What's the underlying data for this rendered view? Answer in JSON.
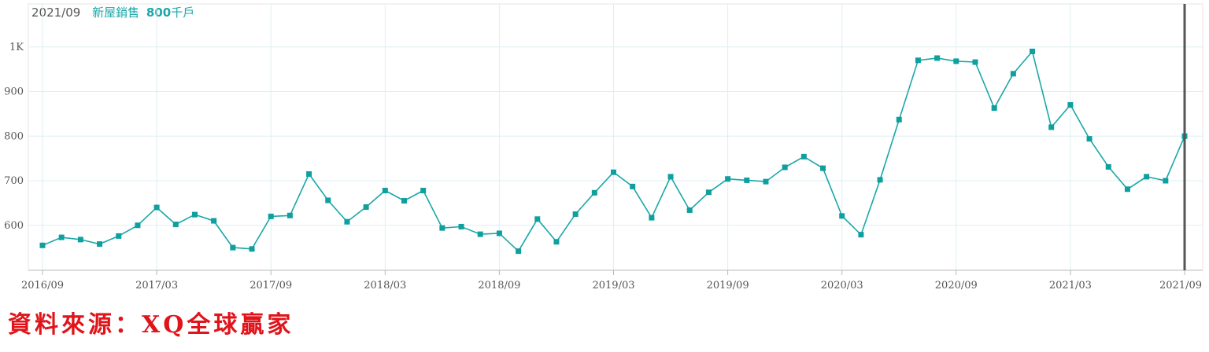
{
  "header": {
    "date": "2021/09",
    "series_name": "新屋銷售",
    "value": "800",
    "unit": "千戶"
  },
  "source_note": "資料來源：XQ全球贏家",
  "colors": {
    "line": "#1aa7a7",
    "marker": "#0f9f9f",
    "grid": "#dfeef2",
    "axis": "#b8b8b8",
    "tick_label": "#555555",
    "cursor": "#555555",
    "source": "#e0141b"
  },
  "chart_data": {
    "type": "line",
    "title": "",
    "xlabel": "",
    "ylabel": "",
    "ylim": [
      500,
      1100
    ],
    "y_ticks": [
      {
        "value": 600,
        "label": "600"
      },
      {
        "value": 700,
        "label": "700"
      },
      {
        "value": 800,
        "label": "800"
      },
      {
        "value": 900,
        "label": "900"
      },
      {
        "value": 1000,
        "label": "1K"
      }
    ],
    "x_tick_labels": [
      "2016/09",
      "2017/03",
      "2017/09",
      "2018/03",
      "2018/09",
      "2019/03",
      "2019/09",
      "2020/03",
      "2020/09",
      "2021/03",
      "2021/09"
    ],
    "grid": true,
    "legend": "none",
    "series": [
      {
        "name": "新屋銷售",
        "x": [
          "2016/09",
          "2016/10",
          "2016/11",
          "2016/12",
          "2017/01",
          "2017/02",
          "2017/03",
          "2017/04",
          "2017/05",
          "2017/06",
          "2017/07",
          "2017/08",
          "2017/09",
          "2017/10",
          "2017/11",
          "2017/12",
          "2018/01",
          "2018/02",
          "2018/03",
          "2018/04",
          "2018/05",
          "2018/06",
          "2018/07",
          "2018/08",
          "2018/09",
          "2018/10",
          "2018/11",
          "2018/12",
          "2019/01",
          "2019/02",
          "2019/03",
          "2019/04",
          "2019/05",
          "2019/06",
          "2019/07",
          "2019/08",
          "2019/09",
          "2019/10",
          "2019/11",
          "2019/12",
          "2020/01",
          "2020/02",
          "2020/03",
          "2020/04",
          "2020/05",
          "2020/06",
          "2020/07",
          "2020/08",
          "2020/09",
          "2020/10",
          "2020/11",
          "2020/12",
          "2021/01",
          "2021/02",
          "2021/03",
          "2021/04",
          "2021/05",
          "2021/06",
          "2021/07",
          "2021/08",
          "2021/09"
        ],
        "values": [
          555,
          573,
          568,
          558,
          576,
          600,
          640,
          602,
          624,
          610,
          550,
          547,
          620,
          622,
          715,
          656,
          608,
          641,
          678,
          655,
          678,
          594,
          597,
          580,
          582,
          542,
          614,
          563,
          625,
          673,
          719,
          687,
          617,
          709,
          634,
          674,
          704,
          701,
          698,
          730,
          754,
          728,
          621,
          579,
          702,
          837,
          970,
          975,
          968,
          966,
          863,
          940,
          990,
          820,
          870,
          794,
          731,
          681,
          709,
          700,
          800
        ]
      }
    ]
  }
}
